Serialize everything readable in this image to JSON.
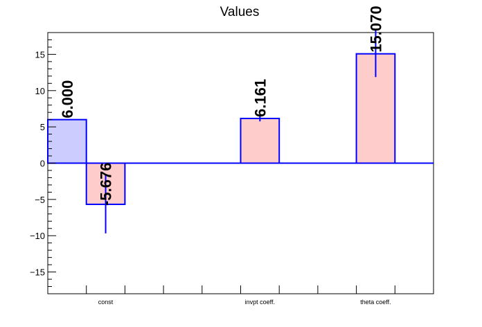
{
  "chart_data": {
    "type": "bar",
    "title": "Values",
    "categories": [
      "const",
      "invpt coeff.",
      "theta coeff."
    ],
    "ylim": [
      -18,
      18
    ],
    "yticks": [
      -15,
      -10,
      -5,
      0,
      5,
      10,
      15
    ],
    "grid": false,
    "bars": [
      {
        "slot": 0,
        "value": 6.0,
        "label": "6.000",
        "error": 0,
        "fill": "#ccccff"
      },
      {
        "slot": 1,
        "value": -5.676,
        "label": "-5.676",
        "error": 4.0,
        "fill": "#ffcccc"
      },
      {
        "slot": 5,
        "value": 6.161,
        "label": "6.161",
        "error": 0.4,
        "fill": "#ffcccc"
      },
      {
        "slot": 8,
        "value": 15.07,
        "label": "15.070",
        "error": 3.2,
        "fill": "#ffcccc"
      }
    ],
    "category_slots": [
      1,
      5,
      8
    ],
    "colors": {
      "outline": "#0000ff",
      "axis": "#000000"
    }
  }
}
